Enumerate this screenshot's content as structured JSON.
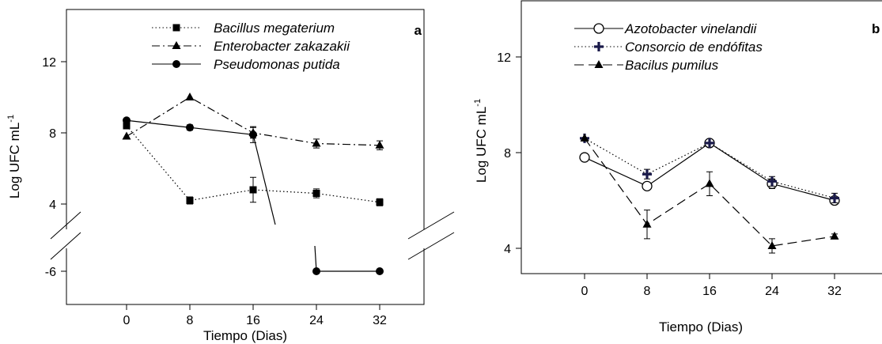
{
  "chart_data": [
    {
      "type": "line",
      "panel_label": "a",
      "xlabel": "Tiempo (Dias)",
      "ylabel_main": "Log UFC mL",
      "ylabel_sup": "-1",
      "x_ticks": [
        0,
        8,
        16,
        24,
        32
      ],
      "y_ticks": [
        -6,
        4,
        8,
        12
      ],
      "broken_y_axis": true,
      "legend_position": "top-right",
      "series": [
        {
          "name": "Bacillus megaterium",
          "style": "dotted",
          "marker": "square",
          "points": [
            {
              "x": 0,
              "y": 8.4
            },
            {
              "x": 8,
              "y": 4.2,
              "err": 0.2
            },
            {
              "x": 16,
              "y": 4.8,
              "err": 0.7
            },
            {
              "x": 24,
              "y": 4.6,
              "err": 0.25
            },
            {
              "x": 32,
              "y": 4.1,
              "err": 0.2
            }
          ]
        },
        {
          "name": "Enterobacter zakazakii",
          "style": "dashdot",
          "marker": "triangle",
          "points": [
            {
              "x": 0,
              "y": 7.8
            },
            {
              "x": 8,
              "y": 10.0
            },
            {
              "x": 16,
              "y": 8.0,
              "err": 0.3
            },
            {
              "x": 24,
              "y": 7.4,
              "err": 0.25
            },
            {
              "x": 32,
              "y": 7.3,
              "err": 0.25
            }
          ]
        },
        {
          "name": "Pseudomonas putida",
          "style": "solid",
          "marker": "circle",
          "points": [
            {
              "x": 0,
              "y": 8.7
            },
            {
              "x": 8,
              "y": 8.3,
              "err": 0.15
            },
            {
              "x": 16,
              "y": 7.9,
              "err": 0.45
            },
            {
              "x": 24,
              "y": -6.0
            },
            {
              "x": 32,
              "y": -6.0
            }
          ]
        }
      ]
    },
    {
      "type": "line",
      "panel_label": "b",
      "xlabel": "Tiempo (Dias)",
      "ylabel_main": "Log UFC mL",
      "ylabel_sup": "-1",
      "x_ticks": [
        0,
        8,
        16,
        24,
        32
      ],
      "y_ticks": [
        4,
        8,
        12
      ],
      "ylim": [
        3.0,
        14.0
      ],
      "legend_position": "top-left",
      "series": [
        {
          "name": "Azotobacter vinelandii",
          "style": "solid",
          "marker": "open-circle",
          "points": [
            {
              "x": 0,
              "y": 7.8
            },
            {
              "x": 8,
              "y": 6.6
            },
            {
              "x": 16,
              "y": 8.4,
              "err": 0.1
            },
            {
              "x": 24,
              "y": 6.7,
              "err": 0.2
            },
            {
              "x": 32,
              "y": 6.0,
              "err": 0.15
            }
          ]
        },
        {
          "name": "Consorcio de endófitas",
          "style": "dotted",
          "marker": "plus",
          "points": [
            {
              "x": 0,
              "y": 8.6
            },
            {
              "x": 8,
              "y": 7.1,
              "err": 0.2
            },
            {
              "x": 16,
              "y": 8.4
            },
            {
              "x": 24,
              "y": 6.8,
              "err": 0.2
            },
            {
              "x": 32,
              "y": 6.1,
              "err": 0.2
            }
          ]
        },
        {
          "name": "Bacilus pumilus",
          "style": "dashed",
          "marker": "triangle",
          "points": [
            {
              "x": 0,
              "y": 8.6
            },
            {
              "x": 8,
              "y": 5.0,
              "err": 0.6
            },
            {
              "x": 16,
              "y": 6.7,
              "err": 0.5
            },
            {
              "x": 24,
              "y": 4.1,
              "err": 0.3
            },
            {
              "x": 32,
              "y": 4.5,
              "err": 0.1
            }
          ]
        }
      ]
    }
  ]
}
